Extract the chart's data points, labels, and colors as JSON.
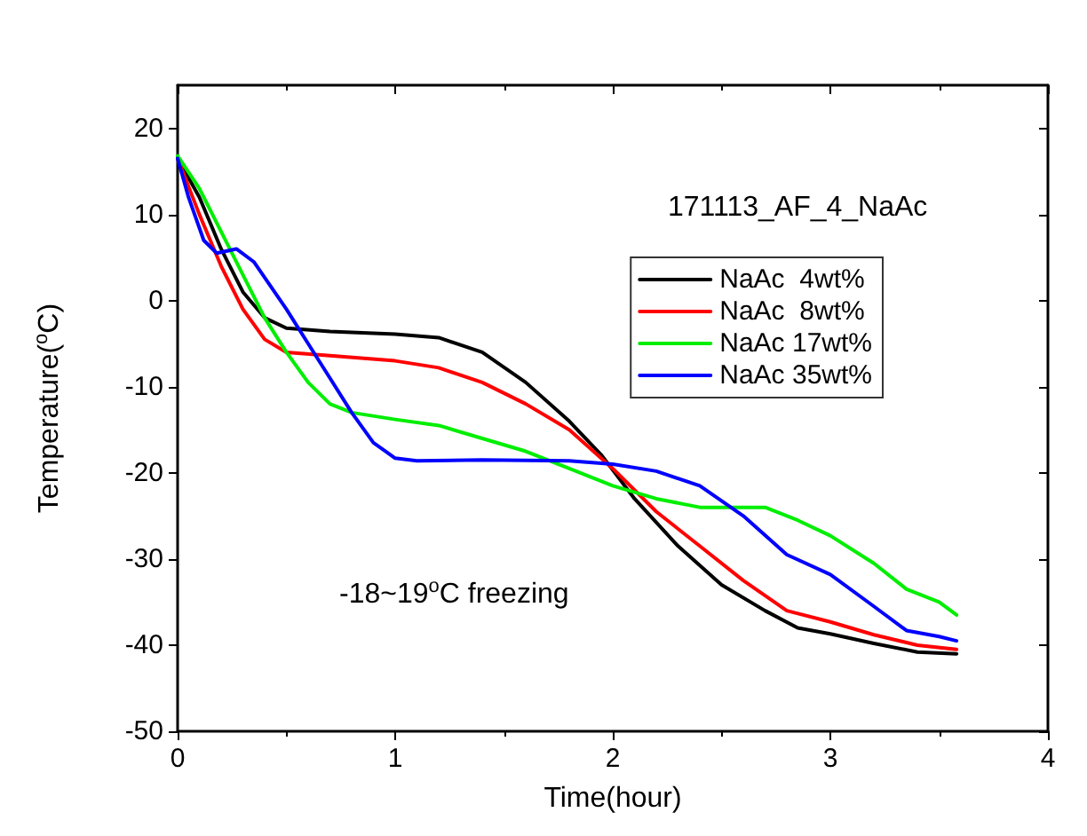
{
  "chart_data": {
    "type": "line",
    "xlabel": "Time(hour)",
    "ylabel": "Temperature($^{o}$C)",
    "xlim": [
      0,
      4
    ],
    "xticks": [
      0,
      1,
      2,
      3,
      4
    ],
    "ylim": [
      -50,
      25
    ],
    "yticks": [
      -50,
      -40,
      -30,
      -20,
      -10,
      0,
      10,
      20
    ],
    "grid": false,
    "legend": "top right",
    "marker": "none",
    "line_style": "solid",
    "annotations": [
      "171113_AF_4_NaAc",
      "-18~19$^{o}$C freezing"
    ],
    "series": [
      {
        "name": "NaAc  4wt%",
        "color": "#000000",
        "x": [
          0,
          0.1,
          0.2,
          0.3,
          0.4,
          0.5,
          0.7,
          1.0,
          1.2,
          1.4,
          1.6,
          1.8,
          1.95,
          2.1,
          2.3,
          2.5,
          2.7,
          2.85,
          3.0,
          3.2,
          3.4,
          3.58
        ],
        "values": [
          16.5,
          12,
          6,
          1,
          -2,
          -3.2,
          -3.6,
          -3.9,
          -4.3,
          -6,
          -9.5,
          -14,
          -18,
          -23,
          -28.5,
          -33,
          -36,
          -38,
          -38.7,
          -39.8,
          -40.8,
          -41
        ]
      },
      {
        "name": "NaAc  8wt%",
        "color": "#ff0000",
        "x": [
          0,
          0.1,
          0.2,
          0.3,
          0.4,
          0.5,
          0.7,
          1.0,
          1.2,
          1.4,
          1.6,
          1.8,
          2.0,
          2.2,
          2.4,
          2.6,
          2.8,
          3.0,
          3.2,
          3.4,
          3.58
        ],
        "values": [
          16.5,
          10,
          4,
          -1,
          -4.5,
          -6,
          -6.4,
          -7,
          -7.8,
          -9.5,
          -12,
          -15,
          -19.5,
          -24.5,
          -28.5,
          -32.5,
          -36,
          -37.3,
          -38.8,
          -40,
          -40.5
        ]
      },
      {
        "name": "NaAc 17wt%",
        "color": "#00ee00",
        "x": [
          0,
          0.1,
          0.2,
          0.3,
          0.4,
          0.5,
          0.6,
          0.7,
          0.8,
          1.0,
          1.2,
          1.4,
          1.6,
          1.8,
          2.0,
          2.2,
          2.4,
          2.6,
          2.7,
          2.85,
          3.0,
          3.2,
          3.35,
          3.5,
          3.58
        ],
        "values": [
          16.8,
          13,
          8,
          3,
          -2,
          -6,
          -9.5,
          -12,
          -13,
          -13.8,
          -14.5,
          -16,
          -17.5,
          -19.5,
          -21.5,
          -23,
          -24,
          -24,
          -24,
          -25.5,
          -27.3,
          -30.5,
          -33.5,
          -35,
          -36.5
        ]
      },
      {
        "name": "NaAc 35wt%",
        "color": "#0000ff",
        "x": [
          0,
          0.05,
          0.12,
          0.18,
          0.27,
          0.35,
          0.5,
          0.6,
          0.7,
          0.8,
          0.9,
          1.0,
          1.1,
          1.4,
          1.8,
          2.0,
          2.2,
          2.4,
          2.6,
          2.8,
          3.0,
          3.2,
          3.35,
          3.5,
          3.58
        ],
        "values": [
          16.5,
          12,
          7,
          5.5,
          6,
          4.5,
          -1,
          -5,
          -9,
          -13,
          -16.5,
          -18.3,
          -18.6,
          -18.5,
          -18.6,
          -19,
          -19.8,
          -21.5,
          -25,
          -29.5,
          -31.8,
          -35.5,
          -38.3,
          -39,
          -39.5
        ]
      }
    ]
  }
}
